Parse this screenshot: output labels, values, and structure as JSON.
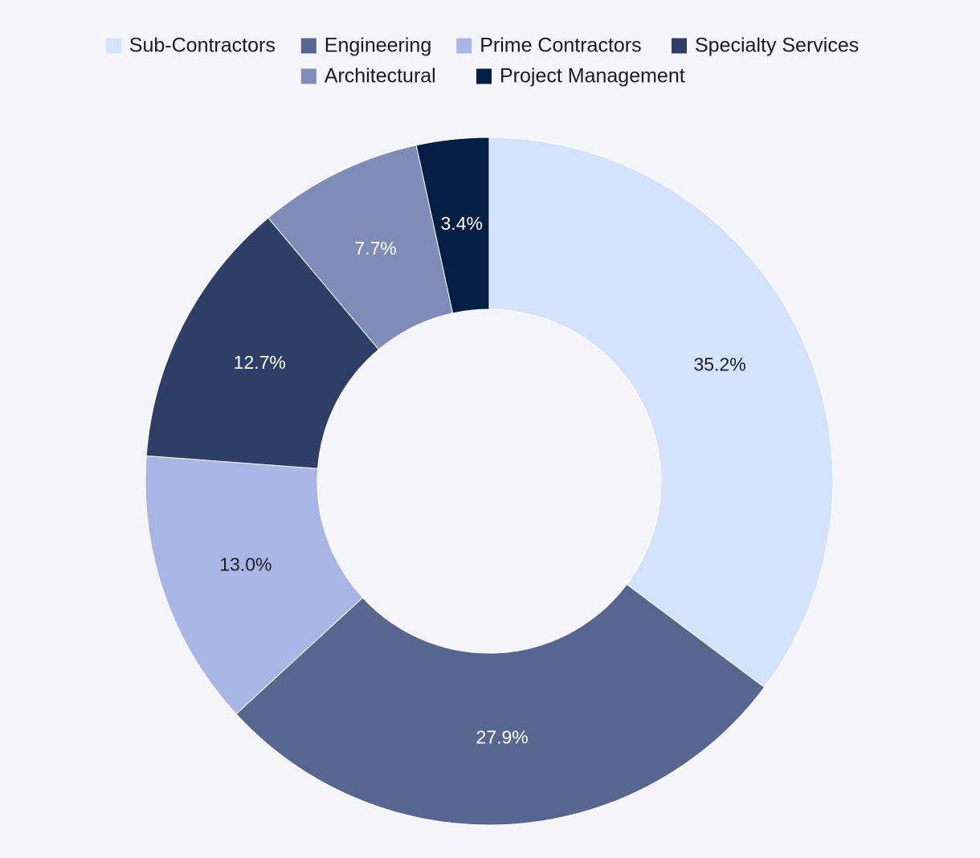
{
  "chart_data": {
    "type": "pie",
    "title": "",
    "categories": [
      "Sub-Contractors",
      "Engineering",
      "Prime Contractors",
      "Specialty Services",
      "Architectural",
      "Project Management"
    ],
    "values": [
      35.2,
      27.9,
      13.0,
      12.7,
      7.7,
      3.4
    ],
    "labels": [
      "35.2%",
      "27.9%",
      "13.0%",
      "12.7%",
      "7.7%",
      "3.4%"
    ],
    "colors": [
      "#d4e3fd",
      "#566691",
      "#a8b6e6",
      "#2e3f67",
      "#7f8cba",
      "#041f44"
    ],
    "label_colors": [
      "#1b1b1f",
      "#ffffff",
      "#1b1b1f",
      "#ffffff",
      "#ffffff",
      "#ffffff"
    ],
    "legend": "top",
    "donut": true
  }
}
